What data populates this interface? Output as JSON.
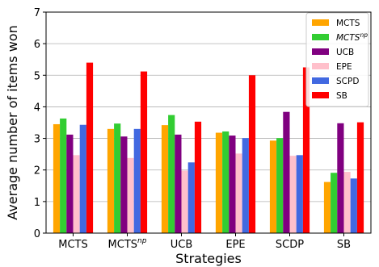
{
  "chart_data": {
    "type": "bar",
    "categories": [
      "MCTS",
      "MCTS",
      "UCB",
      "EPE",
      "SCDP",
      "SB"
    ],
    "category_superscripts": [
      "",
      "np",
      "",
      "",
      "",
      ""
    ],
    "xlabel": "Strategies",
    "ylabel": "Average number of items won",
    "ylim": [
      0,
      7
    ],
    "yticks": [
      "0",
      "1",
      "2",
      "3",
      "4",
      "5",
      "6",
      "7"
    ],
    "grid": true,
    "legend_position": "top-right",
    "series": [
      {
        "name": "MCTS",
        "superscript": "",
        "italic": false,
        "color": "#ffa500",
        "values": [
          3.45,
          3.3,
          3.42,
          3.18,
          2.93,
          1.62
        ]
      },
      {
        "name": "MCTS",
        "superscript": "np",
        "italic": true,
        "color": "#32cd32",
        "values": [
          3.63,
          3.47,
          3.74,
          3.22,
          3.01,
          1.91
        ]
      },
      {
        "name": "UCB",
        "superscript": "",
        "italic": false,
        "color": "#800080",
        "values": [
          3.12,
          3.06,
          3.12,
          3.09,
          3.84,
          3.48
        ]
      },
      {
        "name": "EPE",
        "superscript": "",
        "italic": false,
        "color": "#ffc0cb",
        "values": [
          2.47,
          2.38,
          1.98,
          2.52,
          2.45,
          1.94
        ]
      },
      {
        "name": "SCPD",
        "superscript": "",
        "italic": false,
        "color": "#4169e1",
        "values": [
          3.43,
          3.3,
          2.24,
          3.01,
          2.47,
          1.73
        ]
      },
      {
        "name": "SB",
        "superscript": "",
        "italic": false,
        "color": "#ff0000",
        "values": [
          5.4,
          5.12,
          3.53,
          5.0,
          5.25,
          3.51
        ]
      }
    ]
  }
}
